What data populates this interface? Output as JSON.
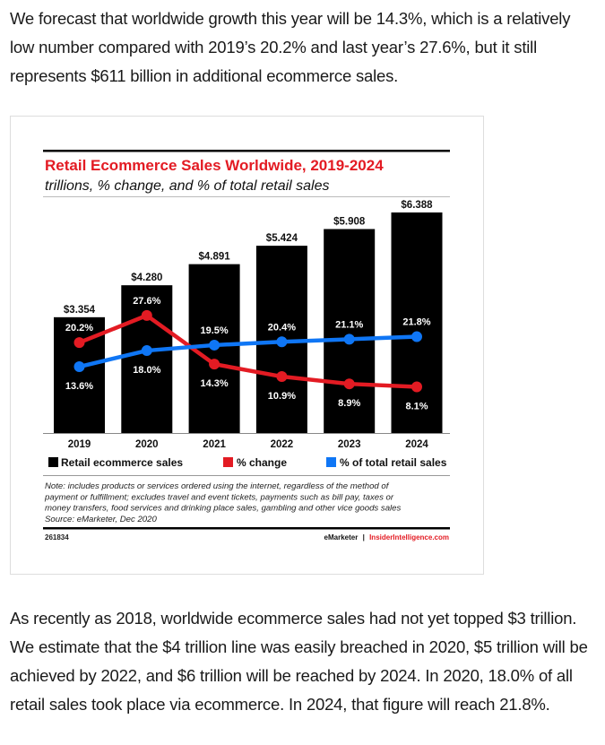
{
  "article": {
    "paragraph_1": "We forecast that worldwide growth this year will be 14.3%, which is a relatively low number compared with 2019’s 20.2% and last year’s 27.6%, but it still represents $611 billion in additional ecommerce sales.",
    "paragraph_2": "As recently as 2018, worldwide ecommerce sales had not yet topped $3 trillion. We estimate that the $4 trillion line was easily breached in 2020, $5 trillion will be achieved by 2022, and $6 trillion will be reached by 2024. In 2020, 18.0% of all retail sales took place via ecommerce. In 2024, that figure will reach 21.8%."
  },
  "chart_data": {
    "type": "bar",
    "title": "Retail Ecommerce Sales Worldwide, 2019-2024",
    "subtitle": "trillions, % change, and % of total retail sales",
    "xlabel": "",
    "ylabel": "",
    "categories": [
      "2019",
      "2020",
      "2021",
      "2022",
      "2023",
      "2024"
    ],
    "ylim": [
      0,
      6.388
    ],
    "grid": false,
    "legend_position": "bottom",
    "series": [
      {
        "name": "Retail ecommerce sales",
        "type": "bar",
        "color": "#000000",
        "values": [
          3.354,
          4.28,
          4.891,
          5.424,
          5.908,
          6.388
        ],
        "labels": [
          "$3.354",
          "$4.280",
          "$4.891",
          "$5.424",
          "$5.908",
          "$6.388"
        ]
      },
      {
        "name": "% change",
        "type": "line",
        "color": "#e31b23",
        "values": [
          20.2,
          27.6,
          14.3,
          10.9,
          8.9,
          8.1
        ],
        "labels": [
          "20.2%",
          "27.6%",
          "14.3%",
          "10.9%",
          "8.9%",
          "8.1%"
        ]
      },
      {
        "name": "% of total retail sales",
        "type": "line",
        "color": "#0f76f5",
        "values": [
          13.6,
          18.0,
          19.5,
          20.4,
          21.1,
          21.8
        ],
        "labels": [
          "13.6%",
          "18.0%",
          "19.5%",
          "20.4%",
          "21.1%",
          "21.8%"
        ]
      }
    ],
    "note": "Note: includes products or services ordered using the internet, regardless of the method of payment or fulfillment; excludes travel and event tickets, payments such as bill pay, taxes or money transfers, food services and drinking place sales, gambling and other vice goods sales",
    "source": "Source: eMarketer, Dec 2020",
    "chart_id": "261834",
    "credit_brand": "eMarketer",
    "credit_separator": "|",
    "credit_site": "InsiderIntelligence.com"
  },
  "colors": {
    "title_red": "#e31b23",
    "change_red": "#e31b23",
    "share_blue": "#0f76f5",
    "bar_black": "#000000"
  }
}
